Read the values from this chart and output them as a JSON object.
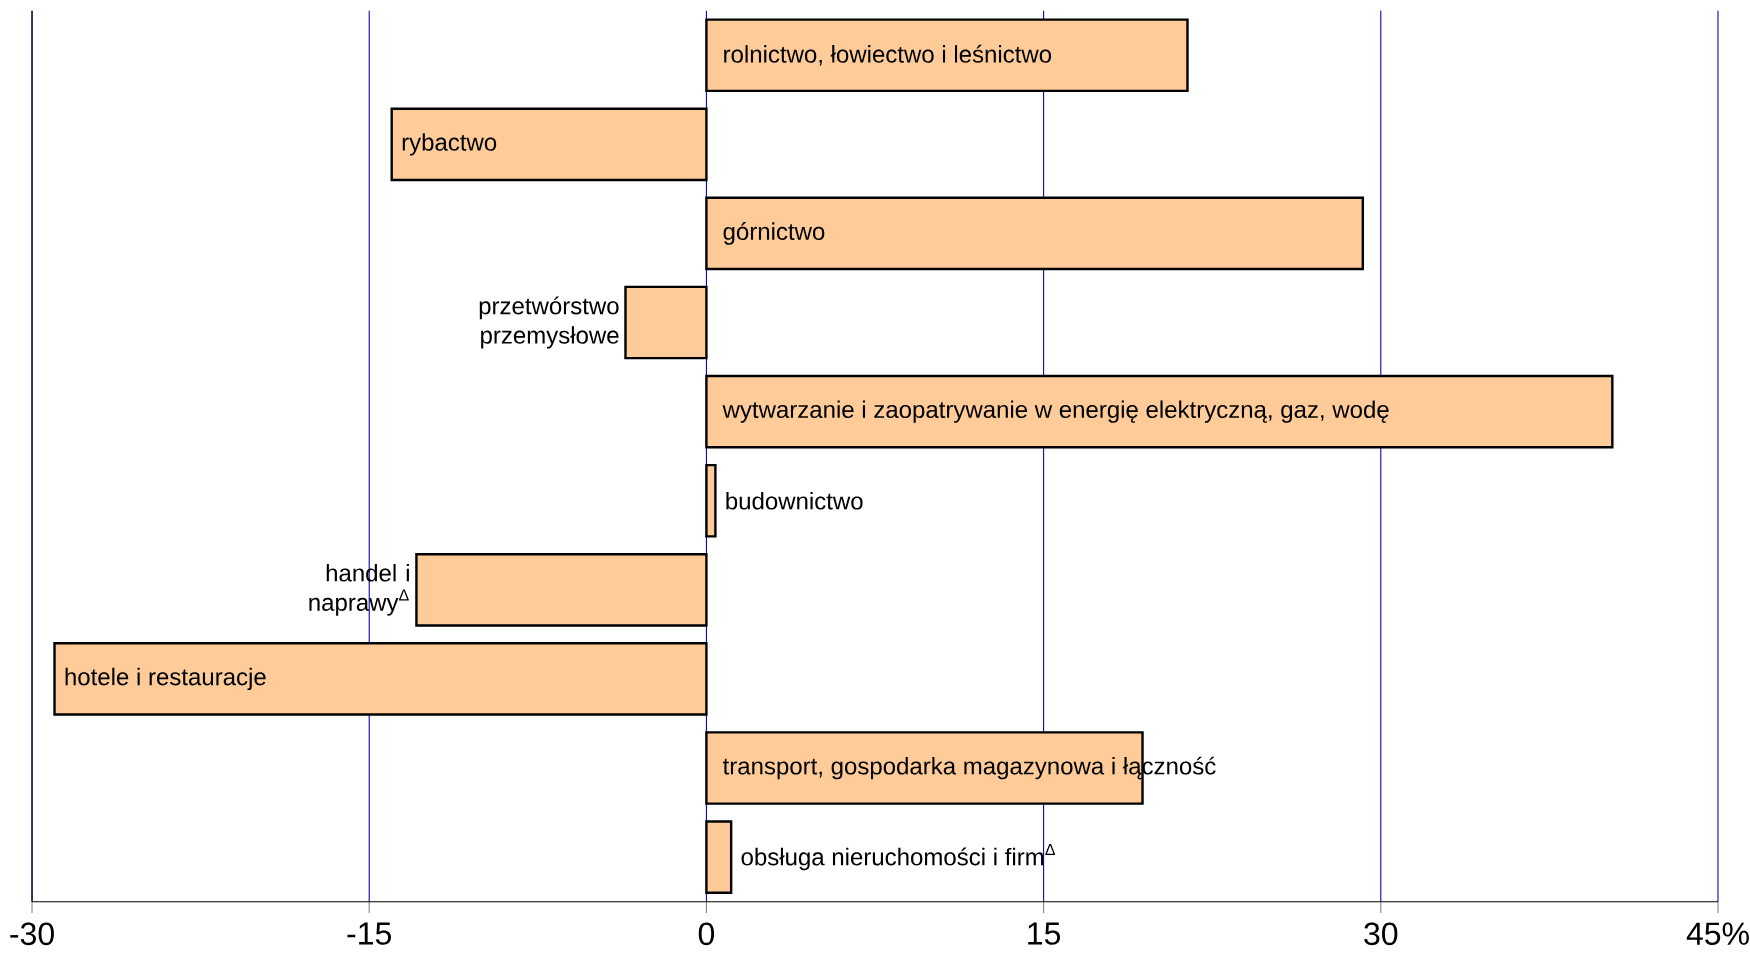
{
  "chart_data": {
    "type": "bar",
    "orientation": "horizontal",
    "categories": [
      "rolnictwo, łowiectwo i leśnictwo",
      "rybactwo",
      "górnictwo",
      "przetwórstwo przemysłowe",
      "wytwarzanie i zaopatrywanie w energię elektryczną, gaz, wodę",
      "budownictwo",
      "handel i naprawy$^{Δ}$",
      "hotele i restauracje",
      "transport, gospodarka magazynowa i łączność",
      "obsługa nieruchomości i firm$^{Δ}$"
    ],
    "values": [
      21.4,
      -14.0,
      29.2,
      -3.6,
      40.3,
      0.4,
      -12.9,
      -29.0,
      19.4,
      1.1
    ],
    "color": "#ffcc99",
    "xlim": [
      -30,
      45
    ],
    "xticks": [
      -30,
      -15,
      0,
      15,
      30,
      {
        "value": 45,
        "label": "45%"
      }
    ],
    "grid": "x",
    "tick_labels": "x"
  }
}
